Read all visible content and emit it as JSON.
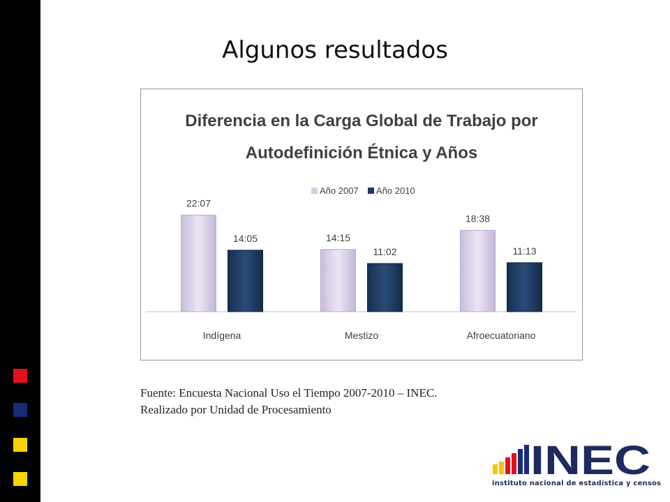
{
  "slide": {
    "title": "Algunos resultados",
    "source_line1": "Fuente: Encuesta Nacional Uso el Tiempo 2007-2010 – INEC.",
    "source_line2": "Realizado por Unidad de Procesamiento"
  },
  "logo": {
    "text": "INEC",
    "subtitle": "instituto nacional de estadística y censos"
  },
  "colors": {
    "series_2007": "#d8cde6",
    "series_2010": "#1e3a64",
    "sidebar_squares": [
      "#e3101d",
      "#1a2a7a",
      "#f5d400",
      "#f5d400"
    ]
  },
  "chart_data": {
    "type": "bar",
    "title": "Diferencia en la Carga Global de Trabajo por Autodefinición Étnica y Años",
    "title_lines": [
      "Diferencia en la Carga Global de Trabajo por",
      "Autodefinición Étnica y Años"
    ],
    "categories": [
      "Indígena",
      "Mestizo",
      "Afroecuatoriano"
    ],
    "series": [
      {
        "name": "Año 2007",
        "values": [
          22.117,
          14.25,
          18.633
        ],
        "labels": [
          "22:07",
          "14:15",
          "18:38"
        ]
      },
      {
        "name": "Año 2010",
        "values": [
          14.083,
          11.033,
          11.217
        ],
        "labels": [
          "14:05",
          "11:02",
          "11:13"
        ]
      }
    ],
    "ylim": [
      0,
      27
    ],
    "legend": "top-center",
    "grid": false
  }
}
